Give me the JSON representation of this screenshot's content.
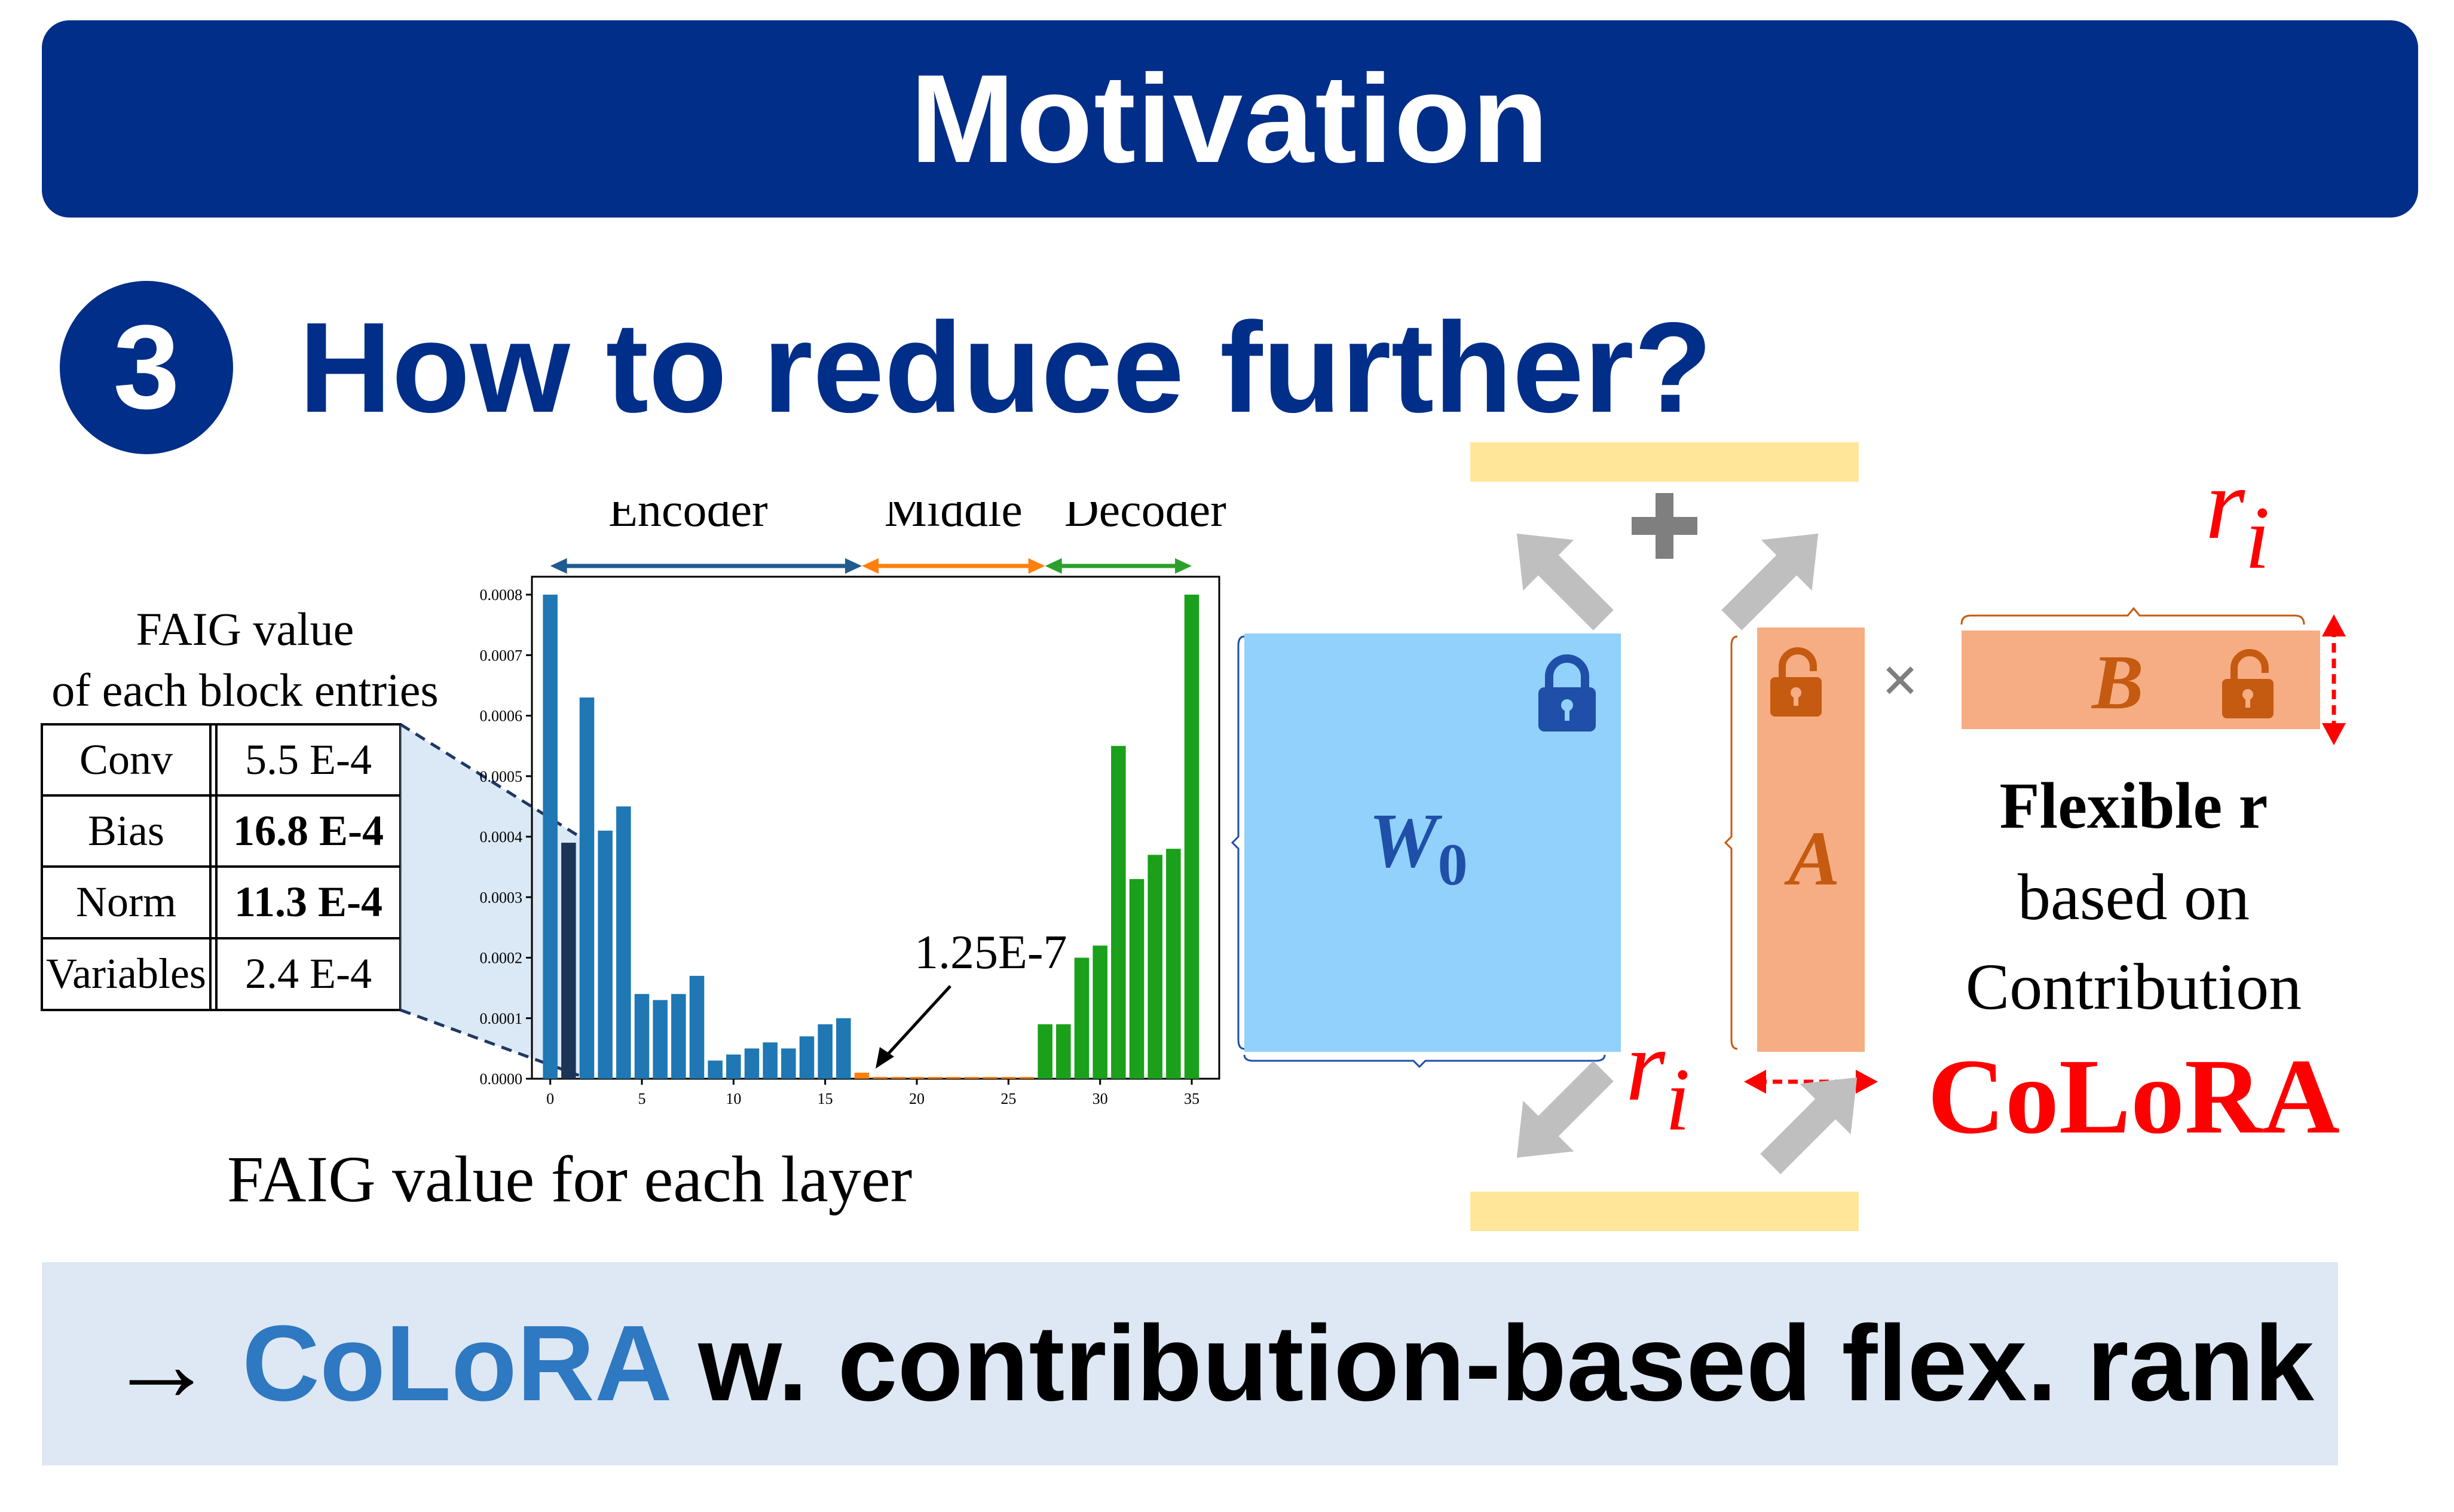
{
  "banner": {
    "title": "Motivation"
  },
  "step": {
    "number": "3",
    "question": "How to reduce further?"
  },
  "faig_table": {
    "title_line1": "FAIG value",
    "title_line2": "of each block entries",
    "rows": [
      {
        "name": "Conv",
        "value": "5.5 E-4",
        "bold": false
      },
      {
        "name": "Bias",
        "value": "16.8 E-4",
        "bold": true
      },
      {
        "name": "Norm",
        "value": "11.3 E-4",
        "bold": true
      },
      {
        "name": "Variables",
        "value": "2.4 E-4",
        "bold": false
      }
    ]
  },
  "chart_data": {
    "type": "bar",
    "xlabel": "",
    "ylabel": "",
    "caption": "FAIG value for each layer",
    "ylim": [
      0,
      0.0008
    ],
    "yticks": [
      "0.0000",
      "0.0001",
      "0.0002",
      "0.0003",
      "0.0004",
      "0.0005",
      "0.0006",
      "0.0007",
      "0.0008"
    ],
    "xticks": [
      "0",
      "5",
      "10",
      "15",
      "20",
      "25",
      "30",
      "35"
    ],
    "sections": [
      {
        "name": "Encoder",
        "color": "#1F5B8E",
        "from": 0,
        "to": 17
      },
      {
        "name": "Middle",
        "color": "#FF7F0E",
        "from": 17,
        "to": 27
      },
      {
        "name": "Decoder",
        "color": "#2CA02C",
        "from": 27,
        "to": 35
      }
    ],
    "annotation": "1.25E-7",
    "x": [
      0,
      1,
      2,
      3,
      4,
      5,
      6,
      7,
      8,
      9,
      10,
      11,
      12,
      13,
      14,
      15,
      16,
      17,
      18,
      19,
      20,
      21,
      22,
      23,
      24,
      25,
      26,
      27,
      28,
      29,
      30,
      31,
      32,
      33,
      34,
      35
    ],
    "values": [
      0.0008,
      0.00039,
      0.00063,
      0.00041,
      0.00045,
      0.00014,
      0.00013,
      0.00014,
      0.00017,
      3e-05,
      4e-05,
      5e-05,
      6e-05,
      5e-05,
      7e-05,
      9e-05,
      0.0001,
      1e-05,
      1.3e-06,
      5e-07,
      5e-07,
      5e-07,
      5e-07,
      5e-07,
      5e-07,
      5e-07,
      5e-07,
      9e-05,
      9e-05,
      0.0002,
      0.00022,
      0.00055,
      0.00033,
      0.00037,
      0.00038,
      0.0008
    ],
    "bar_colors": {
      "encoder": "#1F77B4",
      "highlight": "#1C3557",
      "middle": "#FF7F0E",
      "decoder": "#1AA01A"
    },
    "highlight_index": 1
  },
  "lora": {
    "w0_label": "W",
    "w0_sub": "0",
    "a_label": "A",
    "b_label": "B",
    "plus": "+",
    "times": "×",
    "r_label": "r",
    "r_sub": "i",
    "flex_line1": "Flexible r",
    "flex_line2": "based on",
    "flex_line3": "Contribution",
    "colora": "CoLoRA"
  },
  "colors": {
    "navy": "#012E88",
    "w0_fill": "#91D1FB",
    "ab_fill": "#F7AD83",
    "lock_blue": "#1F4FA8",
    "lock_orange": "#C55A11",
    "feature_bar": "#FFE699",
    "arrow_gray": "#BFBFBF",
    "red": "#FF0000"
  },
  "bottom": {
    "arrow": "→ ",
    "highlight": "CoLoRA",
    "rest": " w. contribution-based flex. rank"
  }
}
